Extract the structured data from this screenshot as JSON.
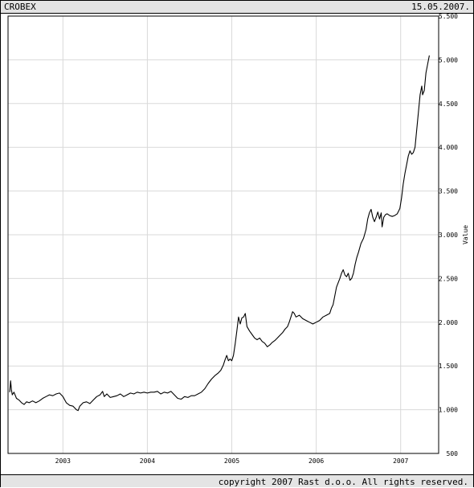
{
  "header": {
    "index_name": "CROBEX",
    "date": "15.05.2007."
  },
  "footer": {
    "copyright": "copyright 2007 Rast d.o.o. All rights reserved."
  },
  "chart_data": {
    "type": "line",
    "title": "CROBEX",
    "xlabel": "",
    "ylabel": "Value",
    "ylim": [
      500,
      5500
    ],
    "y_ticks": [
      "500",
      "1.000",
      "1.500",
      "2.000",
      "2.500",
      "3.000",
      "3.500",
      "4.000",
      "4.500",
      "5.000",
      "5.500"
    ],
    "y_tick_values": [
      500,
      1000,
      1500,
      2000,
      2500,
      3000,
      3500,
      4000,
      4500,
      5000,
      5500
    ],
    "x_ticks": [
      "2003",
      "2004",
      "2005",
      "2006",
      "2007"
    ],
    "x_tick_values": [
      2003.0,
      2004.0,
      2005.0,
      2006.0,
      2007.0
    ],
    "xlim": [
      2002.35,
      2007.45
    ],
    "grid": true,
    "series": [
      {
        "color": "#000000",
        "points": [
          [
            2002.37,
            1200
          ],
          [
            2002.38,
            1330
          ],
          [
            2002.39,
            1230
          ],
          [
            2002.4,
            1170
          ],
          [
            2002.42,
            1200
          ],
          [
            2002.45,
            1130
          ],
          [
            2002.48,
            1110
          ],
          [
            2002.51,
            1080
          ],
          [
            2002.54,
            1060
          ],
          [
            2002.57,
            1090
          ],
          [
            2002.6,
            1080
          ],
          [
            2002.64,
            1100
          ],
          [
            2002.68,
            1080
          ],
          [
            2002.72,
            1100
          ],
          [
            2002.76,
            1130
          ],
          [
            2002.8,
            1150
          ],
          [
            2002.84,
            1170
          ],
          [
            2002.88,
            1160
          ],
          [
            2002.92,
            1180
          ],
          [
            2002.96,
            1190
          ],
          [
            2003.0,
            1150
          ],
          [
            2003.04,
            1080
          ],
          [
            2003.08,
            1050
          ],
          [
            2003.12,
            1040
          ],
          [
            2003.16,
            1000
          ],
          [
            2003.18,
            990
          ],
          [
            2003.2,
            1040
          ],
          [
            2003.24,
            1080
          ],
          [
            2003.28,
            1090
          ],
          [
            2003.32,
            1070
          ],
          [
            2003.36,
            1110
          ],
          [
            2003.4,
            1150
          ],
          [
            2003.44,
            1170
          ],
          [
            2003.47,
            1210
          ],
          [
            2003.49,
            1150
          ],
          [
            2003.52,
            1180
          ],
          [
            2003.56,
            1140
          ],
          [
            2003.6,
            1150
          ],
          [
            2003.64,
            1160
          ],
          [
            2003.68,
            1180
          ],
          [
            2003.72,
            1150
          ],
          [
            2003.76,
            1170
          ],
          [
            2003.8,
            1190
          ],
          [
            2003.84,
            1180
          ],
          [
            2003.88,
            1200
          ],
          [
            2003.92,
            1190
          ],
          [
            2003.96,
            1200
          ],
          [
            2004.0,
            1190
          ],
          [
            2004.04,
            1200
          ],
          [
            2004.08,
            1200
          ],
          [
            2004.12,
            1210
          ],
          [
            2004.16,
            1180
          ],
          [
            2004.2,
            1200
          ],
          [
            2004.24,
            1190
          ],
          [
            2004.28,
            1210
          ],
          [
            2004.32,
            1170
          ],
          [
            2004.36,
            1130
          ],
          [
            2004.4,
            1120
          ],
          [
            2004.44,
            1150
          ],
          [
            2004.48,
            1140
          ],
          [
            2004.52,
            1160
          ],
          [
            2004.56,
            1160
          ],
          [
            2004.6,
            1180
          ],
          [
            2004.64,
            1200
          ],
          [
            2004.68,
            1240
          ],
          [
            2004.72,
            1300
          ],
          [
            2004.76,
            1350
          ],
          [
            2004.8,
            1390
          ],
          [
            2004.84,
            1420
          ],
          [
            2004.87,
            1450
          ],
          [
            2004.9,
            1510
          ],
          [
            2004.92,
            1570
          ],
          [
            2004.94,
            1620
          ],
          [
            2004.96,
            1560
          ],
          [
            2004.98,
            1580
          ],
          [
            2005.0,
            1560
          ],
          [
            2005.02,
            1620
          ],
          [
            2005.04,
            1750
          ],
          [
            2005.06,
            1900
          ],
          [
            2005.08,
            2060
          ],
          [
            2005.1,
            1980
          ],
          [
            2005.12,
            2050
          ],
          [
            2005.14,
            2060
          ],
          [
            2005.16,
            2100
          ],
          [
            2005.18,
            1950
          ],
          [
            2005.21,
            1900
          ],
          [
            2005.24,
            1860
          ],
          [
            2005.27,
            1820
          ],
          [
            2005.3,
            1800
          ],
          [
            2005.33,
            1820
          ],
          [
            2005.36,
            1780
          ],
          [
            2005.39,
            1760
          ],
          [
            2005.42,
            1720
          ],
          [
            2005.45,
            1740
          ],
          [
            2005.48,
            1770
          ],
          [
            2005.51,
            1790
          ],
          [
            2005.54,
            1820
          ],
          [
            2005.57,
            1850
          ],
          [
            2005.6,
            1880
          ],
          [
            2005.63,
            1920
          ],
          [
            2005.66,
            1950
          ],
          [
            2005.68,
            2000
          ],
          [
            2005.7,
            2060
          ],
          [
            2005.72,
            2120
          ],
          [
            2005.74,
            2100
          ],
          [
            2005.76,
            2060
          ],
          [
            2005.8,
            2080
          ],
          [
            2005.84,
            2040
          ],
          [
            2005.88,
            2020
          ],
          [
            2005.92,
            2000
          ],
          [
            2005.96,
            1980
          ],
          [
            2006.0,
            2000
          ],
          [
            2006.04,
            2020
          ],
          [
            2006.08,
            2060
          ],
          [
            2006.12,
            2080
          ],
          [
            2006.16,
            2100
          ],
          [
            2006.18,
            2160
          ],
          [
            2006.2,
            2200
          ],
          [
            2006.22,
            2300
          ],
          [
            2006.24,
            2400
          ],
          [
            2006.26,
            2450
          ],
          [
            2006.28,
            2500
          ],
          [
            2006.3,
            2560
          ],
          [
            2006.32,
            2600
          ],
          [
            2006.34,
            2540
          ],
          [
            2006.36,
            2520
          ],
          [
            2006.38,
            2560
          ],
          [
            2006.4,
            2480
          ],
          [
            2006.42,
            2500
          ],
          [
            2006.44,
            2560
          ],
          [
            2006.46,
            2660
          ],
          [
            2006.48,
            2740
          ],
          [
            2006.5,
            2800
          ],
          [
            2006.53,
            2900
          ],
          [
            2006.56,
            2960
          ],
          [
            2006.59,
            3060
          ],
          [
            2006.61,
            3180
          ],
          [
            2006.63,
            3250
          ],
          [
            2006.65,
            3290
          ],
          [
            2006.67,
            3200
          ],
          [
            2006.69,
            3150
          ],
          [
            2006.71,
            3200
          ],
          [
            2006.73,
            3260
          ],
          [
            2006.75,
            3180
          ],
          [
            2006.77,
            3250
          ],
          [
            2006.78,
            3090
          ],
          [
            2006.8,
            3200
          ],
          [
            2006.82,
            3230
          ],
          [
            2006.84,
            3240
          ],
          [
            2006.87,
            3220
          ],
          [
            2006.9,
            3210
          ],
          [
            2006.93,
            3220
          ],
          [
            2006.96,
            3240
          ],
          [
            2006.99,
            3300
          ],
          [
            2007.01,
            3420
          ],
          [
            2007.03,
            3580
          ],
          [
            2007.05,
            3700
          ],
          [
            2007.07,
            3800
          ],
          [
            2007.09,
            3900
          ],
          [
            2007.11,
            3960
          ],
          [
            2007.13,
            3920
          ],
          [
            2007.15,
            3940
          ],
          [
            2007.17,
            4000
          ],
          [
            2007.19,
            4200
          ],
          [
            2007.21,
            4400
          ],
          [
            2007.23,
            4600
          ],
          [
            2007.25,
            4700
          ],
          [
            2007.26,
            4600
          ],
          [
            2007.28,
            4650
          ],
          [
            2007.3,
            4850
          ],
          [
            2007.32,
            4950
          ],
          [
            2007.34,
            5050
          ]
        ]
      }
    ]
  }
}
